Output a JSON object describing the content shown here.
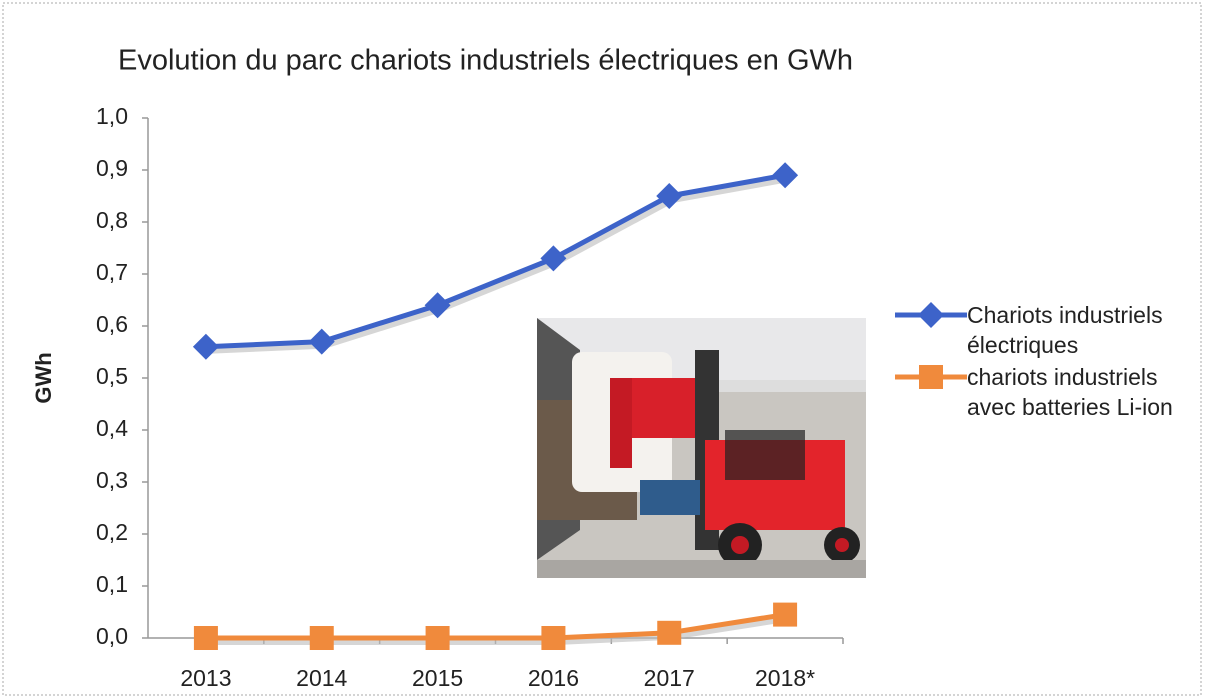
{
  "chart_data": {
    "type": "line",
    "title": "Evolution  du parc chariots industriels électriques en GWh",
    "y_label": "GWh",
    "categories": [
      "2013",
      "2014",
      "2015",
      "2016",
      "2017",
      "2018*"
    ],
    "series": [
      {
        "name": "Chariots industriels électriques",
        "color": "#3d63c9",
        "marker": "diamond",
        "values": [
          0.56,
          0.57,
          0.64,
          0.73,
          0.85,
          0.89
        ]
      },
      {
        "name": "chariots industriels avec batteries Li-ion",
        "color": "#f08a3c",
        "marker": "square",
        "values": [
          0,
          0,
          0,
          0,
          0.01,
          0.045
        ]
      }
    ],
    "ylim": [
      0,
      1
    ],
    "yticks": [
      {
        "value": 0,
        "label": "0,0"
      },
      {
        "value": 0.1,
        "label": "0,1"
      },
      {
        "value": 0.2,
        "label": "0,2"
      },
      {
        "value": 0.3,
        "label": "0,3"
      },
      {
        "value": 0.4,
        "label": "0,4"
      },
      {
        "value": 0.5,
        "label": "0,5"
      },
      {
        "value": 0.6,
        "label": "0,6"
      },
      {
        "value": 0.7,
        "label": "0,7"
      },
      {
        "value": 0.8,
        "label": "0,8"
      },
      {
        "value": 0.9,
        "label": "0,9"
      },
      {
        "value": 1,
        "label": "1,0"
      }
    ],
    "grid": false,
    "legend": "right"
  }
}
